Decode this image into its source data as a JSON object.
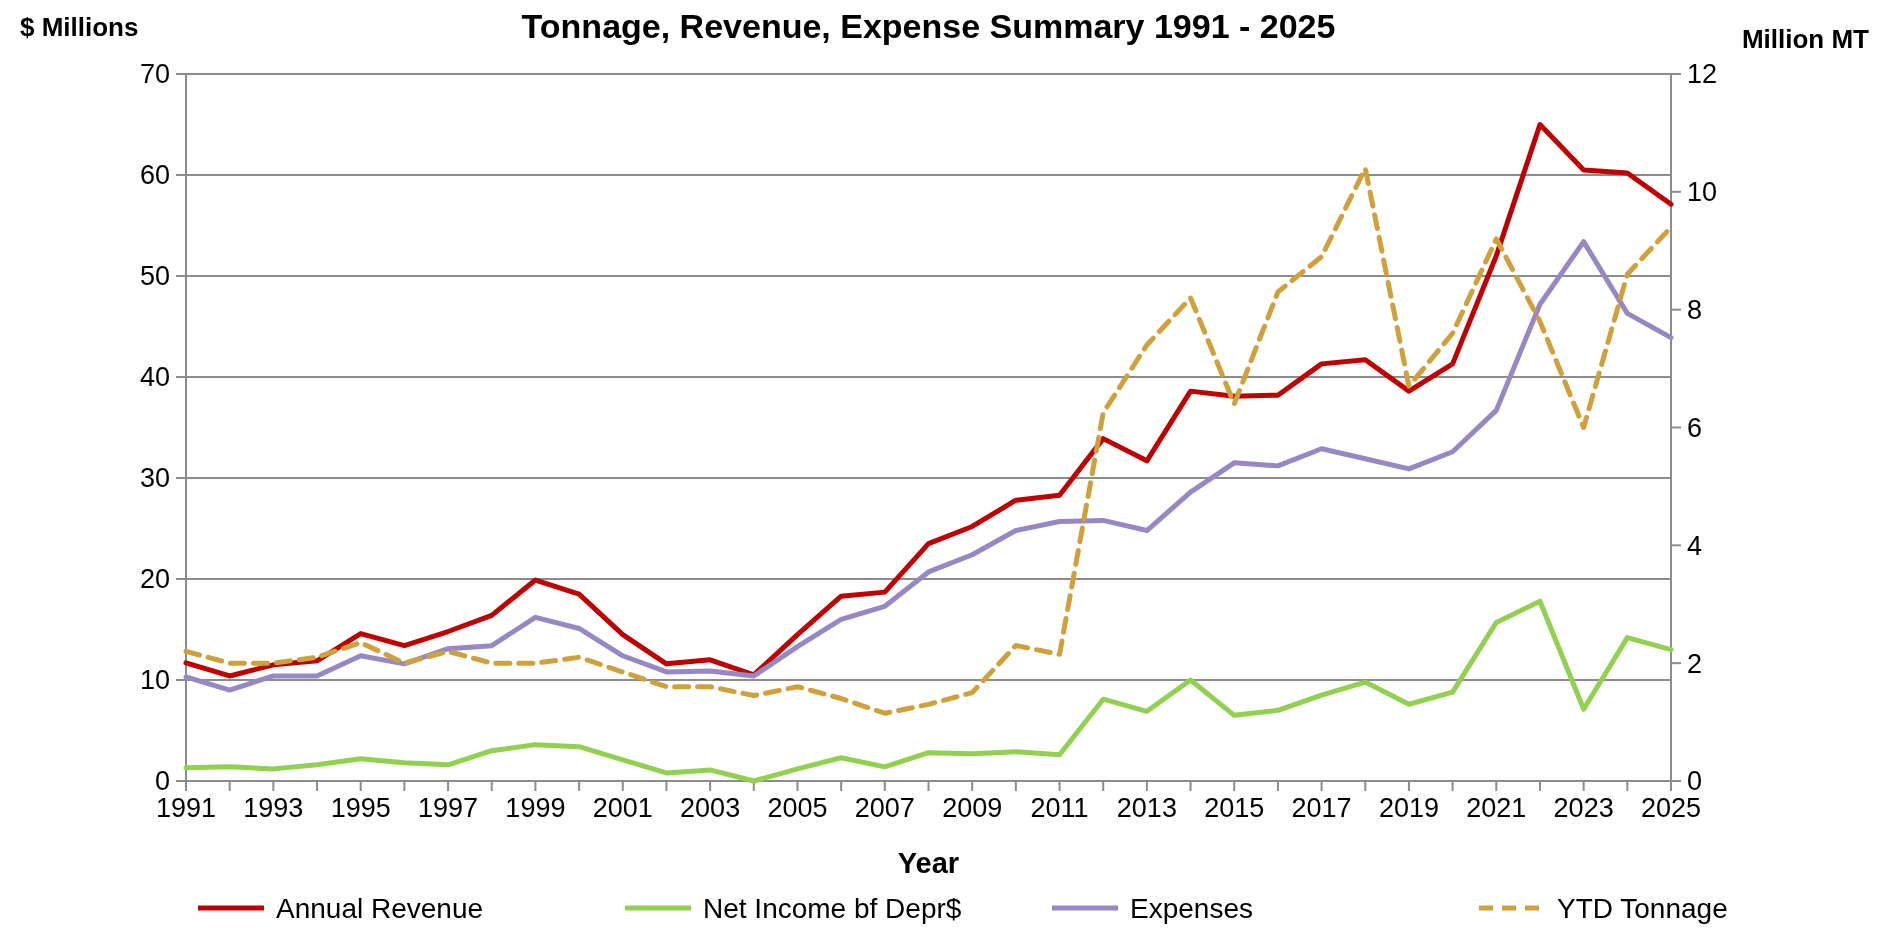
{
  "chart_data": {
    "type": "line",
    "title": "Tonnage, Revenue, Expense Summary 1991 - 2025",
    "xlabel": "Year",
    "ylabel": "$ Millions",
    "y2label": "Million MT",
    "x": [
      1991,
      1992,
      1993,
      1994,
      1995,
      1996,
      1997,
      1998,
      1999,
      2000,
      2001,
      2002,
      2003,
      2004,
      2005,
      2006,
      2007,
      2008,
      2009,
      2010,
      2011,
      2012,
      2013,
      2014,
      2015,
      2016,
      2017,
      2018,
      2019,
      2020,
      2021,
      2022,
      2023,
      2024,
      2025
    ],
    "series": [
      {
        "name": "Annual Revenue",
        "color": "#c00000",
        "values": [
          11.7,
          10.4,
          11.5,
          11.9,
          14.6,
          13.4,
          14.8,
          16.4,
          19.9,
          18.5,
          14.5,
          11.6,
          12.0,
          10.5,
          14.5,
          18.3,
          18.7,
          23.5,
          25.2,
          27.8,
          28.3,
          33.9,
          31.7,
          38.6,
          38.1,
          38.2,
          41.3,
          41.7,
          38.6,
          41.3,
          52,
          65,
          60.5,
          60.2,
          57.1
        ]
      },
      {
        "name": "Net Income bf Depr$",
        "color": "#92d050",
        "values": [
          1.3,
          1.4,
          1.2,
          1.6,
          2.2,
          1.8,
          1.6,
          3.0,
          3.6,
          3.4,
          2.1,
          0.8,
          1.1,
          0.0,
          1.2,
          2.3,
          1.4,
          2.8,
          2.7,
          2.9,
          2.6,
          8.1,
          6.9,
          10.0,
          6.5,
          7.0,
          8.5,
          9.8,
          7.6,
          8.8,
          15.7,
          17.8,
          7.1,
          14.2,
          13.0
        ]
      },
      {
        "name": "Expenses",
        "color": "#9787c4",
        "values": [
          10.3,
          9.0,
          10.4,
          10.4,
          12.4,
          11.6,
          13.1,
          13.4,
          16.2,
          15.1,
          12.4,
          10.8,
          10.9,
          10.4,
          13.3,
          16.0,
          17.3,
          20.7,
          22.4,
          24.8,
          25.7,
          25.8,
          24.8,
          28.6,
          31.5,
          31.2,
          32.9,
          31.9,
          30.9,
          32.6,
          36.7,
          47.2,
          53.4,
          46.3,
          43.9
        ]
      },
      {
        "name": "YTD Tonnage",
        "color": "#d0a13a",
        "axis": "y2",
        "line_style": "dashed",
        "values": [
          2.2,
          2.0,
          2.0,
          2.1,
          2.35,
          2.0,
          2.2,
          2.0,
          2.0,
          2.1,
          1.85,
          1.6,
          1.6,
          1.45,
          1.6,
          1.4,
          1.15,
          1.3,
          1.5,
          2.3,
          2.15,
          6.25,
          7.4,
          8.2,
          6.4,
          8.3,
          8.9,
          10.4,
          6.7,
          7.6,
          9.2,
          7.8,
          6.0,
          8.6,
          9.4
        ]
      }
    ],
    "xlim": [
      1991,
      2025
    ],
    "xticks": [
      1991,
      {
        "value": 1992,
        "label": null
      },
      1993,
      {
        "value": 1994,
        "label": null
      },
      1995,
      {
        "value": 1996,
        "label": null
      },
      1997,
      {
        "value": 1998,
        "label": null
      },
      1999,
      {
        "value": 2000,
        "label": null
      },
      2001,
      {
        "value": 2002,
        "label": null
      },
      2003,
      {
        "value": 2004,
        "label": null
      },
      2005,
      {
        "value": 2006,
        "label": null
      },
      2007,
      {
        "value": 2008,
        "label": null
      },
      2009,
      {
        "value": 2010,
        "label": null
      },
      2011,
      {
        "value": 2012,
        "label": null
      },
      2013,
      {
        "value": 2014,
        "label": null
      },
      2015,
      {
        "value": 2016,
        "label": null
      },
      2017,
      {
        "value": 2018,
        "label": null
      },
      2019,
      {
        "value": 2020,
        "label": null
      },
      2021,
      {
        "value": 2022,
        "label": null
      },
      2023,
      {
        "value": 2024,
        "label": null
      },
      2025
    ],
    "ylim": [
      0,
      70
    ],
    "yticks": [
      0,
      10,
      20,
      30,
      40,
      50,
      60,
      70
    ],
    "y2lim": [
      0,
      12
    ],
    "y2ticks": [
      0,
      2,
      4,
      6,
      8,
      10,
      12
    ],
    "grid": "y",
    "legend": "bottom",
    "line_style": "solid"
  }
}
